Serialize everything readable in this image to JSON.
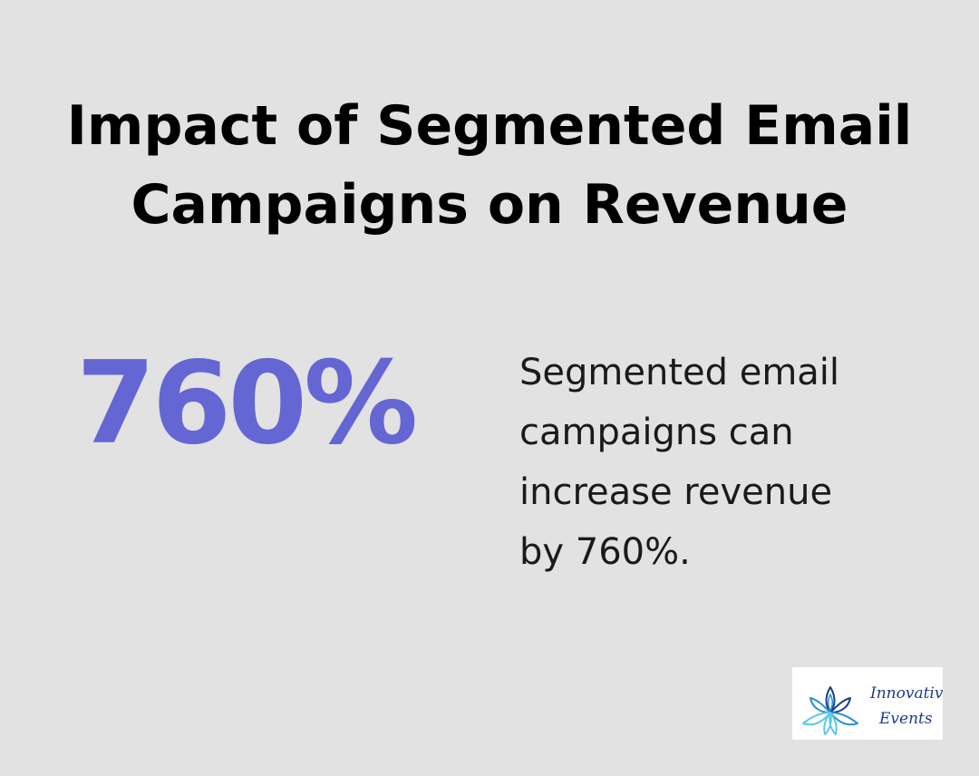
{
  "title": {
    "line1": "Impact of Segmented Email",
    "line2": "Campaigns on Revenue"
  },
  "stat": {
    "value": "760%"
  },
  "description": {
    "lines": [
      "Segmented email",
      "campaigns can",
      "increase revenue",
      "by 760%."
    ]
  },
  "logo": {
    "icon": "lotus-flower-icon",
    "text_line1": "Innovative",
    "text_line2": "Events"
  },
  "colors": {
    "background": "#e1e2e1",
    "stat": "#6466d3",
    "title": "#000000",
    "logo_blue": "#2a8fd6",
    "logo_navy": "#1f3c8a",
    "logo_cyan": "#5cc8e8"
  }
}
